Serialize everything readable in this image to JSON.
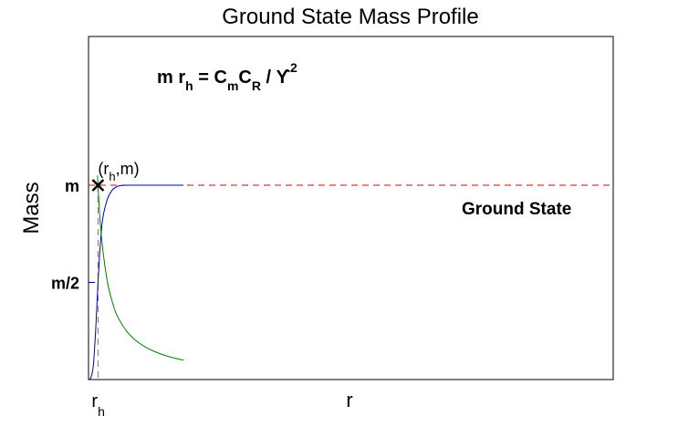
{
  "chart_data": {
    "type": "line",
    "title": "Ground State Mass Profile",
    "ylabel": "Mass",
    "xlabel": "r",
    "xlim": [
      0,
      10
    ],
    "ylim": [
      0,
      1.0
    ],
    "y_ticks": [
      {
        "label": "m",
        "value": 1.0
      },
      {
        "label": "m/2",
        "value": 0.5
      }
    ],
    "x_ticks": [
      {
        "label": "r",
        "sub": "h",
        "value": 1.0
      }
    ],
    "series": [
      {
        "name": "Ground State",
        "color": "#0000c0",
        "x": [
          0,
          0.25,
          0.5,
          0.75,
          1.0,
          1.25,
          1.5,
          2.0,
          2.5,
          3.0,
          3.5,
          4.0,
          4.5,
          5.0,
          6.0,
          7.0,
          8.0,
          9.0,
          10.0
        ],
        "y": [
          0,
          0.01,
          0.07,
          0.25,
          0.5,
          0.7,
          0.83,
          0.93,
          0.975,
          0.993,
          0.999,
          1.0,
          1.0,
          1.0,
          1.0,
          1.0,
          1.0,
          1.0,
          1.0
        ]
      },
      {
        "name": "",
        "color": "#008000",
        "x": [
          0.95,
          1.0,
          1.2,
          1.5,
          2.0,
          2.5,
          3.0,
          4.0,
          5.0,
          6.0,
          7.0,
          8.0,
          9.0,
          10.0
        ],
        "y": [
          1.05,
          1.0,
          0.83,
          0.67,
          0.5,
          0.4,
          0.33,
          0.25,
          0.2,
          0.167,
          0.143,
          0.125,
          0.111,
          0.1
        ]
      }
    ],
    "marker": {
      "label_main": "(r",
      "label_sub": "h",
      "label_end": ",m)",
      "x": 1.0,
      "y": 1.0
    },
    "annotations": [
      {
        "text": "Ground State",
        "x": 7.0,
        "y": 0.88
      }
    ],
    "equation": {
      "p1": "m r",
      "s1": "h",
      "p2": " = C",
      "s2": "m",
      "p3": "C",
      "s3": "R",
      "p4": " / ϒ",
      "sup": "2"
    },
    "colors": {
      "blue": "#0000c0",
      "green": "#008000",
      "guide_red": "#e00000",
      "guide_blue": "#0000a0",
      "guide_orange": "#d06000"
    }
  }
}
